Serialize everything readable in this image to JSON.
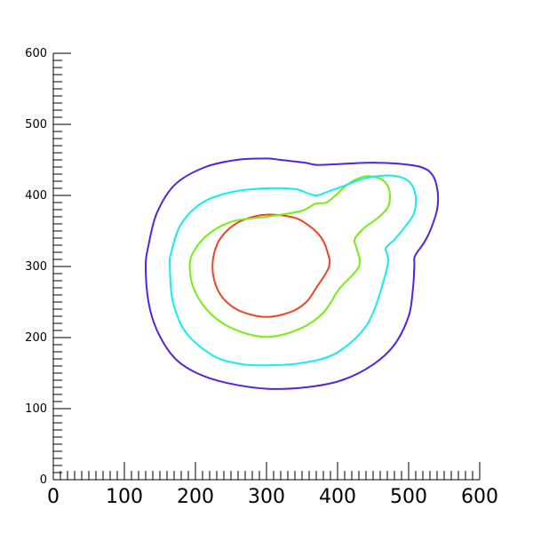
{
  "chart_data": {
    "type": "contour",
    "title": "",
    "xlabel": "",
    "ylabel": "",
    "xlim": [
      0,
      600
    ],
    "ylim": [
      0,
      600
    ],
    "x_ticks": [
      "0",
      "100",
      "200",
      "300",
      "400",
      "500",
      "600"
    ],
    "y_ticks": [
      "0",
      "100",
      "200",
      "300",
      "400",
      "500",
      "600"
    ],
    "x_minor_step": 10,
    "y_minor_step": 10,
    "grid": false,
    "legend": "none",
    "series": [
      {
        "color": "#ee4422",
        "points": [
          [
            388,
            300
          ],
          [
            385,
            323
          ],
          [
            376,
            342
          ],
          [
            359,
            358
          ],
          [
            338,
            369
          ],
          [
            300,
            373
          ],
          [
            266,
            365
          ],
          [
            244,
            350
          ],
          [
            230,
            330
          ],
          [
            224,
            300
          ],
          [
            230,
            270
          ],
          [
            244,
            250
          ],
          [
            266,
            236
          ],
          [
            300,
            229
          ],
          [
            334,
            236
          ],
          [
            356,
            250
          ],
          [
            370,
            270
          ],
          [
            388,
            300
          ]
        ]
      },
      {
        "color": "#77ee11",
        "points": [
          [
            430,
            300
          ],
          [
            427,
            325
          ],
          [
            424,
            338
          ],
          [
            436,
            353
          ],
          [
            456,
            368
          ],
          [
            471,
            384
          ],
          [
            473,
            406
          ],
          [
            463,
            422
          ],
          [
            440,
            427
          ],
          [
            416,
            417
          ],
          [
            397,
            400
          ],
          [
            384,
            390
          ],
          [
            368,
            388
          ],
          [
            348,
            378
          ],
          [
            300,
            370
          ],
          [
            254,
            364
          ],
          [
            220,
            347
          ],
          [
            198,
            322
          ],
          [
            192,
            300
          ],
          [
            198,
            268
          ],
          [
            220,
            235
          ],
          [
            254,
            212
          ],
          [
            300,
            201
          ],
          [
            346,
            212
          ],
          [
            380,
            235
          ],
          [
            402,
            268
          ],
          [
            430,
            300
          ]
        ]
      },
      {
        "color": "#11eeee",
        "points": [
          [
            470,
            300
          ],
          [
            470,
            316
          ],
          [
            468,
            326
          ],
          [
            481,
            339
          ],
          [
            495,
            356
          ],
          [
            507,
            374
          ],
          [
            510,
            398
          ],
          [
            500,
            420
          ],
          [
            475,
            428
          ],
          [
            438,
            424
          ],
          [
            408,
            413
          ],
          [
            388,
            406
          ],
          [
            371,
            400
          ],
          [
            358,
            403
          ],
          [
            340,
            409
          ],
          [
            300,
            410
          ],
          [
            252,
            405
          ],
          [
            210,
            390
          ],
          [
            180,
            360
          ],
          [
            166,
            320
          ],
          [
            164,
            300
          ],
          [
            168,
            252
          ],
          [
            186,
            208
          ],
          [
            224,
            175
          ],
          [
            262,
            163
          ],
          [
            300,
            161
          ],
          [
            348,
            164
          ],
          [
            394,
            176
          ],
          [
            432,
            206
          ],
          [
            452,
            240
          ],
          [
            470,
            300
          ]
        ]
      },
      {
        "color": "#5522dd",
        "points": [
          [
            508,
            300
          ],
          [
            508,
            312
          ],
          [
            512,
            320
          ],
          [
            522,
            334
          ],
          [
            531,
            352
          ],
          [
            540,
            380
          ],
          [
            541,
            404
          ],
          [
            534,
            428
          ],
          [
            517,
            440
          ],
          [
            480,
            445
          ],
          [
            440,
            446
          ],
          [
            400,
            444
          ],
          [
            370,
            443
          ],
          [
            355,
            446
          ],
          [
            320,
            450
          ],
          [
            300,
            452
          ],
          [
            258,
            450
          ],
          [
            214,
            440
          ],
          [
            172,
            416
          ],
          [
            146,
            376
          ],
          [
            134,
            330
          ],
          [
            130,
            300
          ],
          [
            134,
            250
          ],
          [
            146,
            210
          ],
          [
            170,
            172
          ],
          [
            202,
            150
          ],
          [
            245,
            136
          ],
          [
            300,
            128
          ],
          [
            355,
            130
          ],
          [
            406,
            140
          ],
          [
            450,
            162
          ],
          [
            480,
            190
          ],
          [
            500,
            230
          ],
          [
            506,
            268
          ],
          [
            508,
            300
          ]
        ]
      }
    ]
  }
}
